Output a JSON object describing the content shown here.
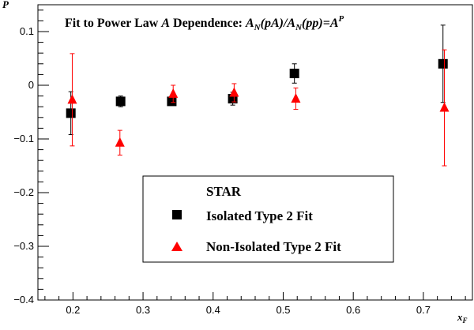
{
  "chart_data": {
    "type": "scatter",
    "title": "Fit to Power Law  A Dependence:  A_N(pA)/A_N(pp)=A^P",
    "title_parts": {
      "lead": "Fit to Power Law  ",
      "a_symbol": "A",
      "mid": " Dependence:  ",
      "an1": "A",
      "an1_sub": "N",
      "paren1": "(pA)/",
      "an2": "A",
      "an2_sub": "N",
      "paren2": "(pp)=",
      "base": "A",
      "exp": "P"
    },
    "xlabel": "x",
    "xlabel_sub": "F",
    "ylabel": "P",
    "xlim": [
      0.15,
      0.77
    ],
    "ylim": [
      -0.4,
      0.15
    ],
    "x_ticks": [
      0.2,
      0.3,
      0.4,
      0.5,
      0.6,
      0.7
    ],
    "x_tick_labels": [
      "0.2",
      "0.3",
      "0.4",
      "0.5",
      "0.6",
      "0.7"
    ],
    "y_ticks": [
      -0.4,
      -0.3,
      -0.2,
      -0.1,
      0,
      0.1
    ],
    "y_tick_labels": [
      "−0.4",
      "−0.3",
      "−0.2",
      "−0.1",
      "0",
      "0.1"
    ],
    "grid": false,
    "legend_header": "STAR",
    "legend_position": "bottom-center",
    "series": [
      {
        "name": "Isolated Type 2 Fit",
        "marker": "square",
        "color": "#000000",
        "x": [
          0.197,
          0.268,
          0.341,
          0.428,
          0.516,
          0.728
        ],
        "y": [
          -0.052,
          -0.03,
          -0.03,
          -0.025,
          0.022,
          0.04
        ],
        "yerr": [
          0.04,
          0.01,
          0.006,
          0.012,
          0.018,
          0.072
        ]
      },
      {
        "name": "Non-Isolated Type 2 Fit",
        "marker": "triangle",
        "color": "#ff0000",
        "x": [
          0.199,
          0.267,
          0.343,
          0.43,
          0.518,
          0.73
        ],
        "y": [
          -0.027,
          -0.107,
          -0.016,
          -0.014,
          -0.025,
          -0.042
        ],
        "yerr": [
          0.086,
          0.023,
          0.016,
          0.017,
          0.02,
          0.108
        ]
      }
    ]
  }
}
